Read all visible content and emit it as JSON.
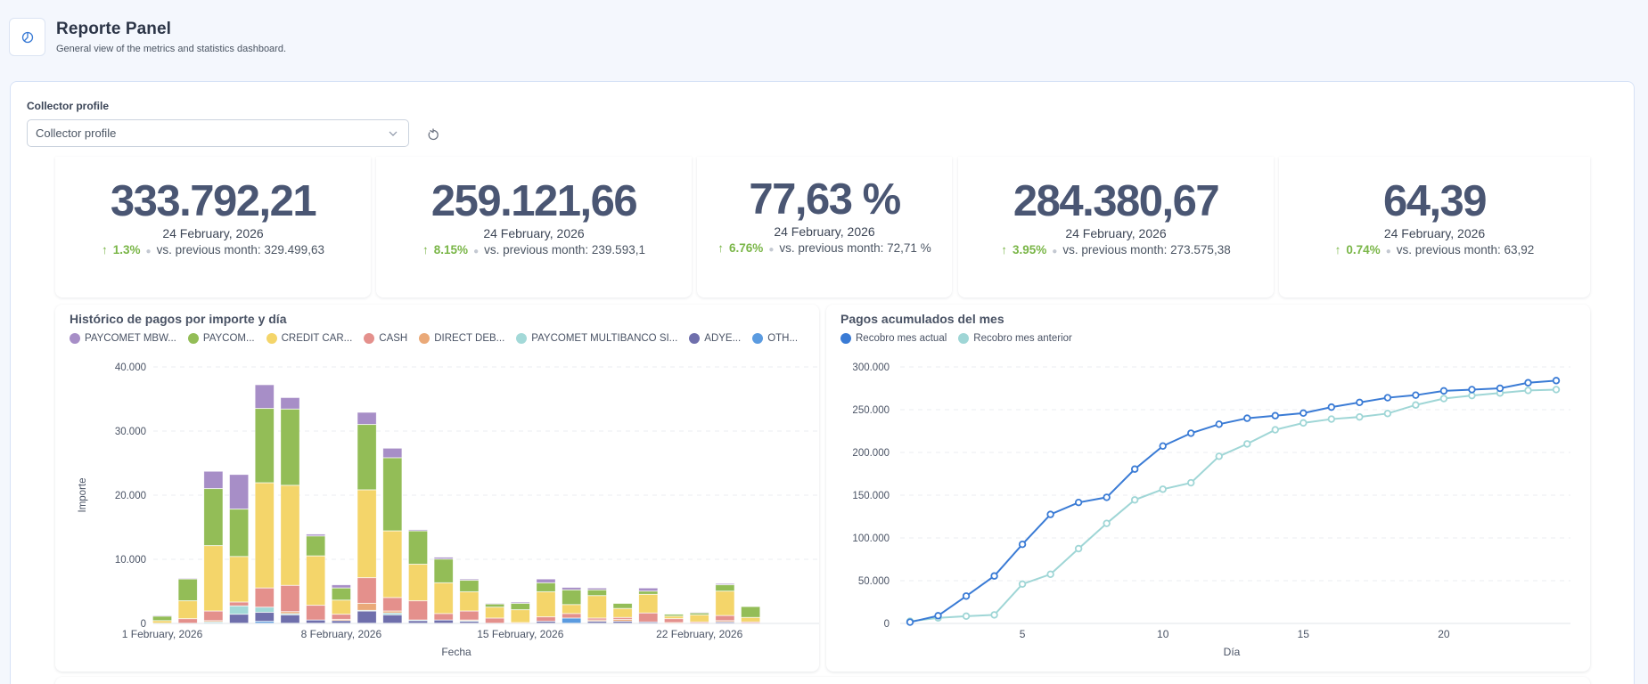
{
  "header": {
    "icon": "pie-chart-icon",
    "title": "Reporte Panel",
    "subtitle": "General view of the metrics and statistics dashboard."
  },
  "filter": {
    "label": "Collector profile",
    "placeholder": "Collector profile",
    "reset_icon": "refresh-icon"
  },
  "kpis": [
    {
      "value": "333.792,21",
      "date": "24 February, 2026",
      "change": "1.3%",
      "comparison": "vs. previous month: 329.499,63",
      "trend": "up"
    },
    {
      "value": "259.121,66",
      "date": "24 February, 2026",
      "change": "8.15%",
      "comparison": "vs. previous month: 239.593,1",
      "trend": "up"
    },
    {
      "value": "77,63 %",
      "date": "24 February, 2026",
      "change": "6.76%",
      "comparison": "vs. previous month: 72,71 %",
      "trend": "up"
    },
    {
      "value": "284.380,67",
      "date": "24 February, 2026",
      "change": "3.95%",
      "comparison": "vs. previous month: 273.575,38",
      "trend": "up"
    },
    {
      "value": "64,39",
      "date": "24 February, 2026",
      "change": "0.74%",
      "comparison": "vs. previous month: 63,92",
      "trend": "up"
    }
  ],
  "colors": {
    "accent_green": "#7ab648",
    "text_dark": "#4a5673"
  },
  "chart_data": [
    {
      "type": "bar",
      "stacked": true,
      "title": "Histórico de pagos por importe y día",
      "xlabel": "Fecha",
      "ylabel": "Importe",
      "ylim": [
        0,
        40000
      ],
      "yticks": [
        0,
        10000,
        20000,
        30000,
        40000
      ],
      "ytick_labels": [
        "0",
        "10.000",
        "20.000",
        "30.000",
        "40.000"
      ],
      "xtick_labels": [
        {
          "day": 1,
          "label": "1 February, 2026"
        },
        {
          "day": 8,
          "label": "8 February, 2026"
        },
        {
          "day": 15,
          "label": "15 February, 2026"
        },
        {
          "day": 22,
          "label": "22 February, 2026"
        }
      ],
      "grid": true,
      "legend_position": "top-left",
      "categories": [
        1,
        2,
        3,
        4,
        5,
        6,
        7,
        8,
        9,
        10,
        11,
        12,
        13,
        14,
        15,
        16,
        17,
        18,
        19,
        20,
        21,
        22,
        23,
        24
      ],
      "series": [
        {
          "name": "OTH...",
          "color": "#5b9be0",
          "values": [
            0,
            0,
            0,
            0,
            300,
            0,
            0,
            0,
            0,
            0,
            0,
            0,
            0,
            0,
            0,
            0,
            800,
            0,
            0,
            0,
            0,
            0,
            0,
            0
          ]
        },
        {
          "name": "ADYE...",
          "color": "#6f6fac",
          "values": [
            0,
            0,
            0,
            1400,
            1400,
            1300,
            500,
            400,
            1900,
            1300,
            400,
            500,
            300,
            0,
            0,
            300,
            0,
            300,
            300,
            200,
            0,
            0,
            200,
            0
          ]
        },
        {
          "name": "PAYCOMET MULTIBANCO SI...",
          "color": "#a3d9d8",
          "values": [
            0,
            0,
            200,
            1300,
            800,
            200,
            0,
            0,
            100,
            300,
            100,
            0,
            100,
            0,
            0,
            0,
            0,
            0,
            0,
            0,
            0,
            0,
            0,
            0
          ]
        },
        {
          "name": "DIRECT DEB...",
          "color": "#eaa978",
          "values": [
            0,
            0,
            200,
            0,
            0,
            300,
            0,
            200,
            1100,
            300,
            0,
            0,
            100,
            0,
            100,
            0,
            0,
            200,
            300,
            0,
            100,
            0,
            200,
            0
          ]
        },
        {
          "name": "CASH",
          "color": "#e4908c",
          "values": [
            0,
            700,
            1500,
            600,
            3000,
            4100,
            2300,
            800,
            4000,
            2100,
            3000,
            1000,
            1400,
            800,
            0,
            700,
            700,
            300,
            300,
            1400,
            600,
            200,
            800,
            200
          ]
        },
        {
          "name": "CREDIT CAR...",
          "color": "#f4d56a",
          "values": [
            400,
            2800,
            10200,
            7100,
            16400,
            15600,
            7700,
            2200,
            13700,
            10400,
            5700,
            4800,
            3000,
            1700,
            2000,
            3900,
            1400,
            3500,
            1400,
            2900,
            400,
            1100,
            3800,
            700
          ]
        },
        {
          "name": "PAYCOM...",
          "color": "#93bd57",
          "values": [
            700,
            3400,
            8900,
            7400,
            11600,
            11900,
            3100,
            1900,
            10200,
            11400,
            5200,
            3700,
            1800,
            500,
            1000,
            1400,
            2300,
            900,
            800,
            500,
            300,
            300,
            1000,
            1700
          ]
        },
        {
          "name": "PAYCOMET MBW...",
          "color": "#a78ec7",
          "values": [
            100,
            100,
            2700,
            5400,
            3700,
            1800,
            300,
            500,
            1900,
            1500,
            200,
            300,
            200,
            100,
            200,
            600,
            400,
            300,
            0,
            500,
            0,
            100,
            200,
            0
          ]
        }
      ]
    },
    {
      "type": "line",
      "title": "Pagos acumulados del mes",
      "xlabel": "Día",
      "ylabel": "",
      "ylim": [
        0,
        300000
      ],
      "xlim": [
        1,
        24
      ],
      "yticks": [
        0,
        50000,
        100000,
        150000,
        200000,
        250000,
        300000
      ],
      "ytick_labels": [
        "0",
        "50.000",
        "100.000",
        "150.000",
        "200.000",
        "250.000",
        "300.000"
      ],
      "xticks": [
        5,
        10,
        15,
        20
      ],
      "xtick_labels": [
        "5",
        "10",
        "15",
        "20"
      ],
      "grid": true,
      "legend_position": "top-left",
      "x": [
        1,
        2,
        3,
        4,
        5,
        6,
        7,
        8,
        9,
        10,
        11,
        12,
        13,
        14,
        15,
        16,
        17,
        18,
        19,
        20,
        21,
        22,
        23,
        24
      ],
      "series": [
        {
          "name": "Recobro mes actual",
          "color": "#3a7bd5",
          "values": [
            1500,
            9000,
            32000,
            55500,
            92500,
            127500,
            141500,
            147500,
            180500,
            207500,
            222500,
            233000,
            240000,
            243000,
            246000,
            253000,
            258500,
            264000,
            267000,
            272000,
            273500,
            275000,
            281500,
            284000
          ]
        },
        {
          "name": "Recobro mes anterior",
          "color": "#9fd6d6",
          "values": [
            2500,
            6500,
            8500,
            10000,
            46000,
            57500,
            87500,
            117000,
            144500,
            157000,
            164500,
            195500,
            210000,
            226500,
            234500,
            239000,
            241500,
            245500,
            255500,
            263000,
            266500,
            269500,
            272500,
            273500
          ]
        }
      ]
    }
  ]
}
